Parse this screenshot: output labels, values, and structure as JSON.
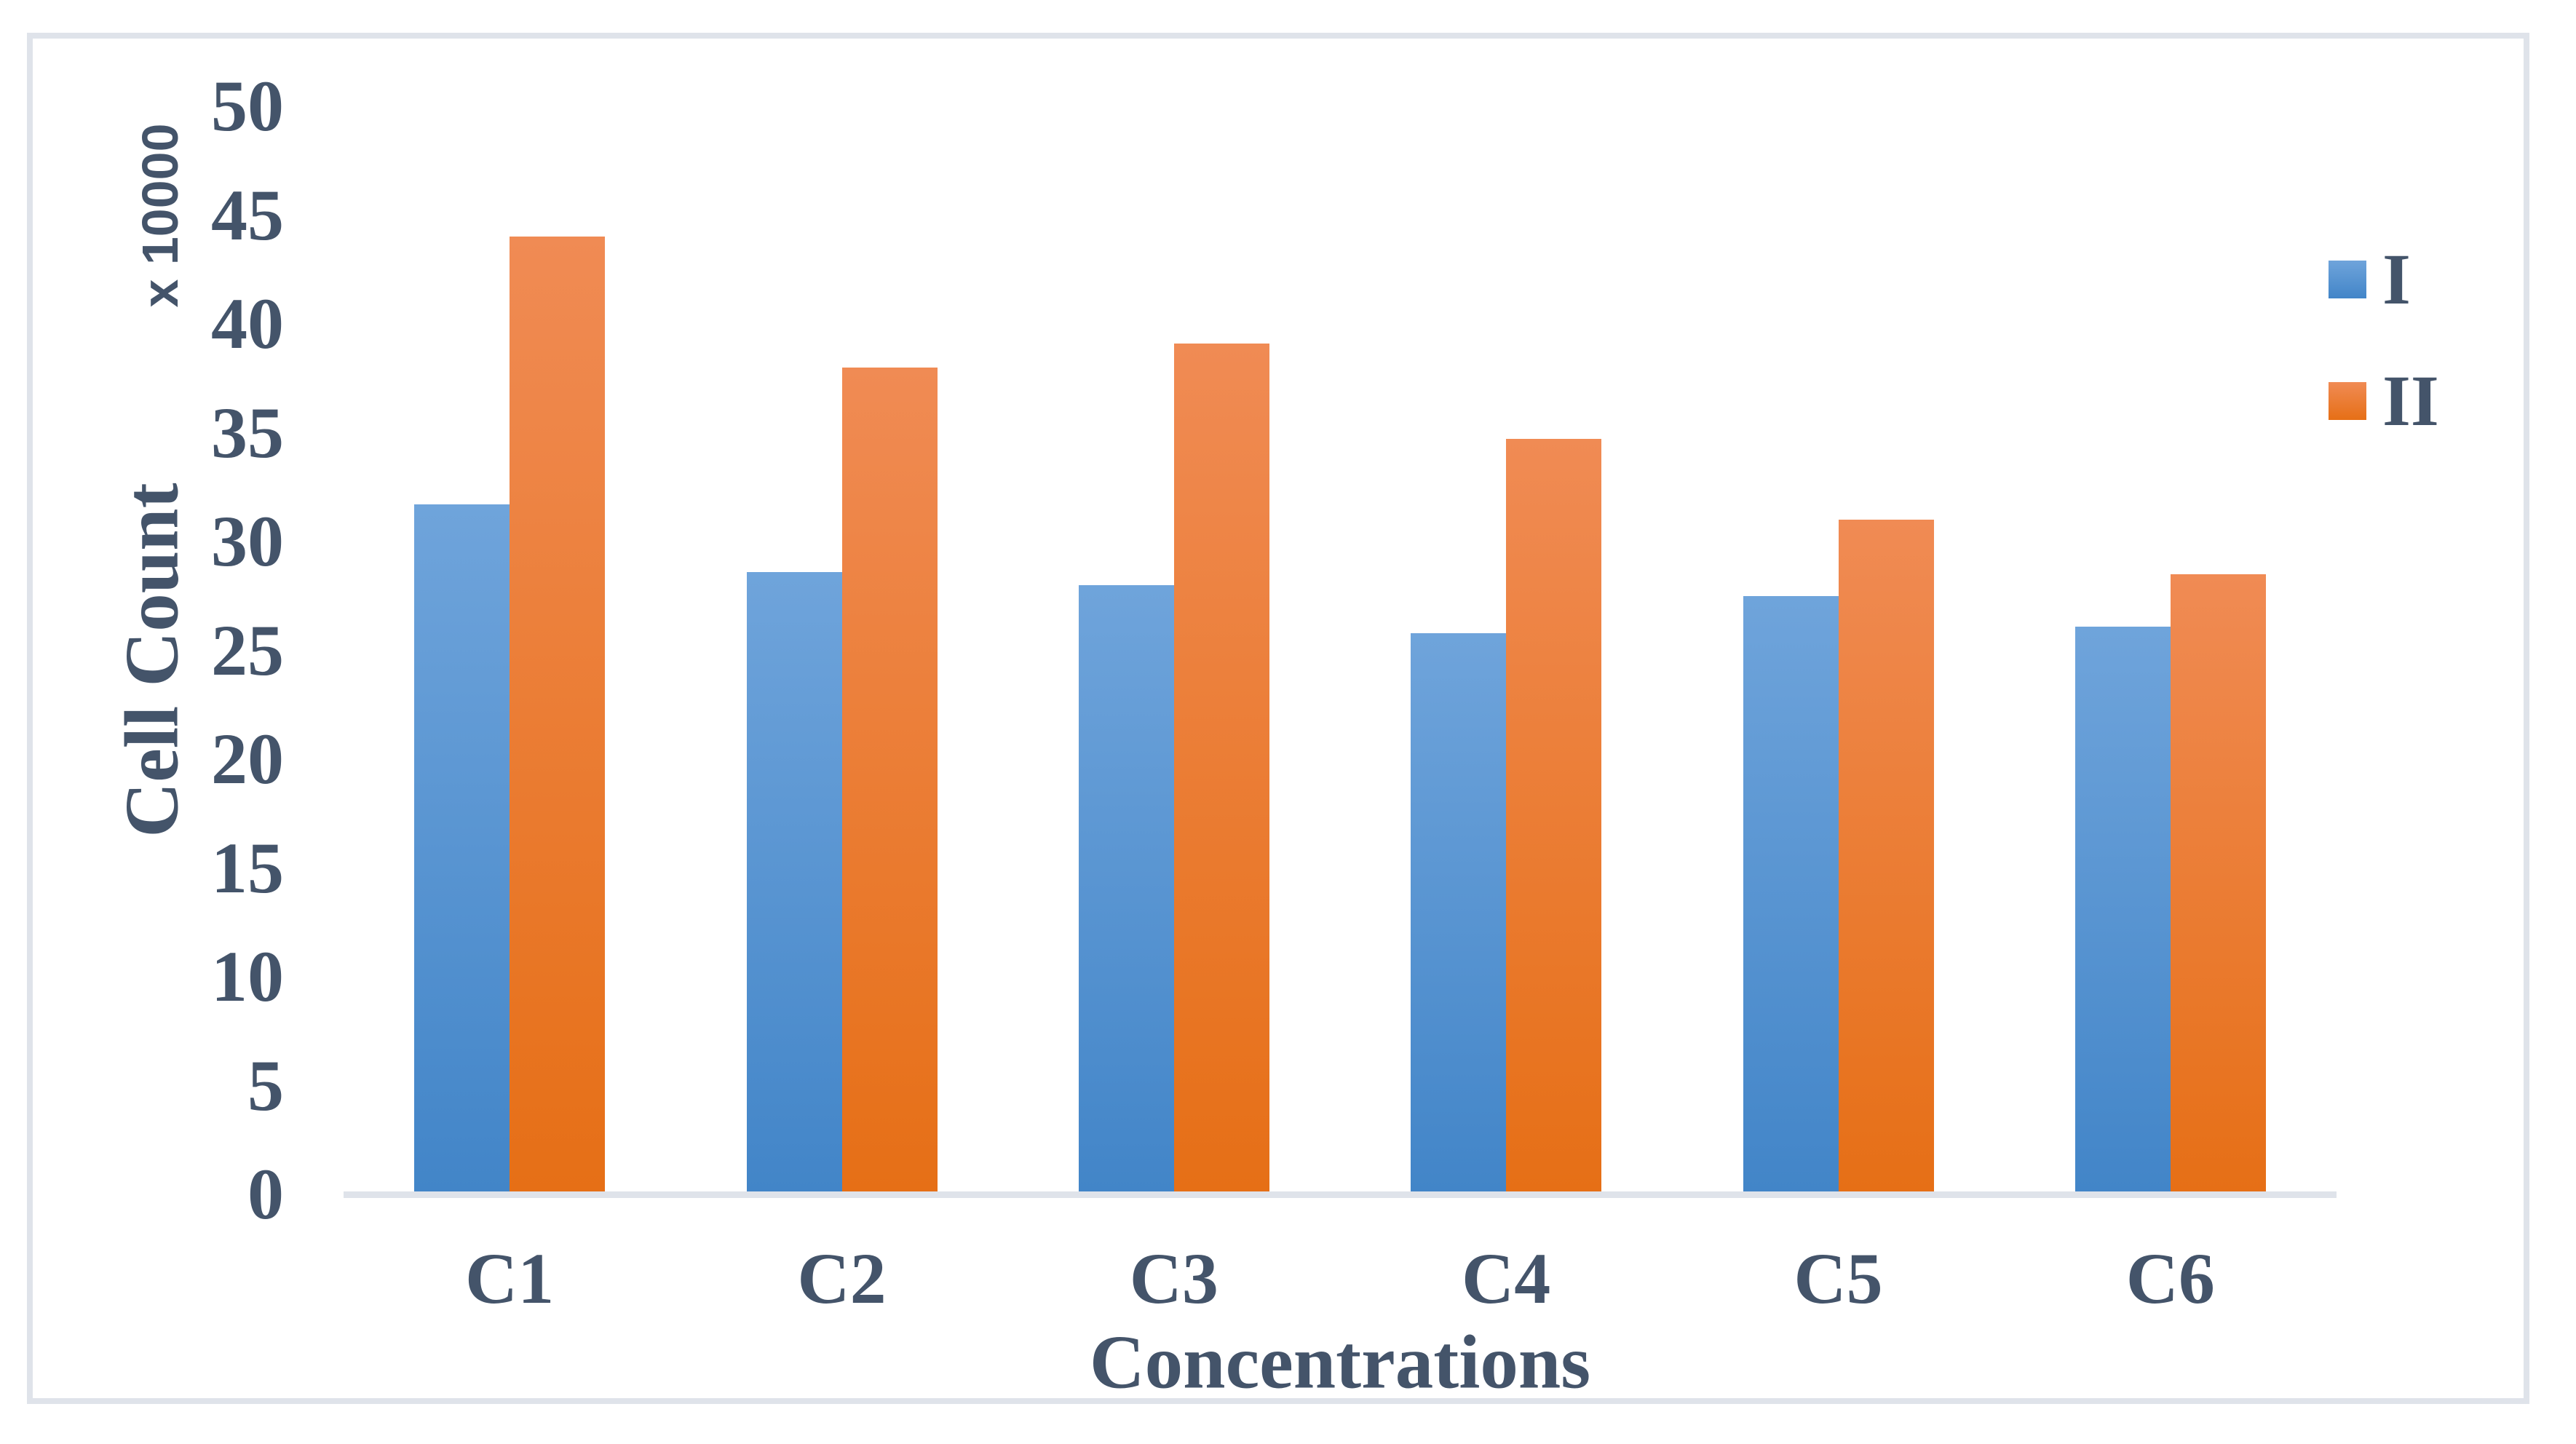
{
  "chart_data": {
    "type": "bar",
    "title": "",
    "categories": [
      "C1",
      "C2",
      "C3",
      "C4",
      "C5",
      "C6"
    ],
    "series": [
      {
        "name": "I",
        "values": [
          31.7,
          28.6,
          28.0,
          25.8,
          27.5,
          26.1
        ],
        "color_top": "#6FA4DB",
        "color_bottom": "#4285C8"
      },
      {
        "name": "II",
        "values": [
          44.0,
          38.0,
          39.1,
          34.7,
          31.0,
          28.5
        ],
        "color_top": "#F08B54",
        "color_bottom": "#E66F16"
      }
    ],
    "xlabel": "Concentrations",
    "ylabel": "Cell Count",
    "y_display_unit": "x 10000",
    "ylim": [
      0,
      50
    ],
    "ytick_step": 5,
    "yticks": [
      "0",
      "5",
      "10",
      "15",
      "20",
      "25",
      "30",
      "35",
      "40",
      "45",
      "50"
    ],
    "grid": false,
    "legend_position": "right",
    "text_color": "#44546A",
    "axis_line_color": "#DFE3EA",
    "frame_border_color": "#DFE3EA"
  }
}
